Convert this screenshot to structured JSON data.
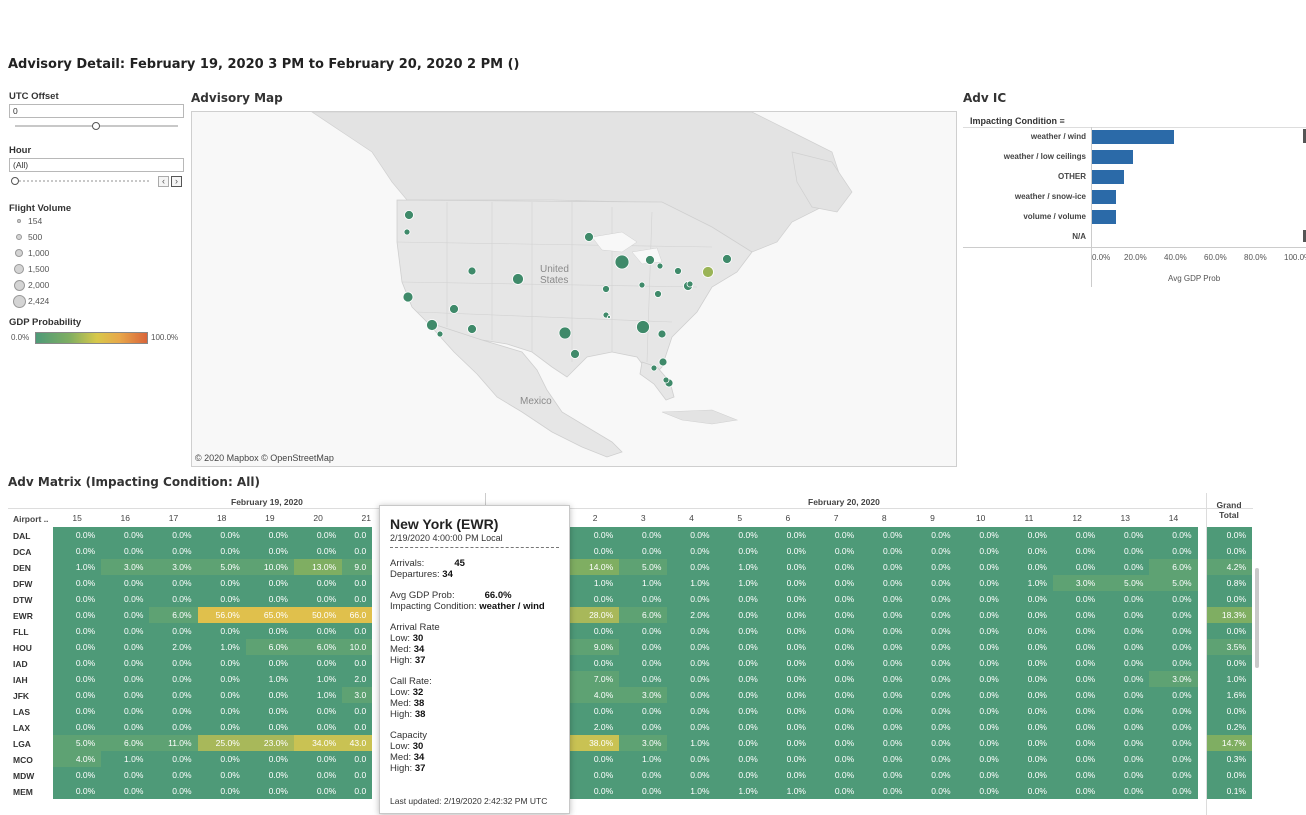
{
  "page_title": "Advisory Detail: February 19, 2020 3 PM to February 20, 2020 2 PM ()",
  "filters": {
    "utc_offset_label": "UTC Offset",
    "utc_offset_value": "0",
    "hour_label": "Hour",
    "hour_value": "(All)"
  },
  "flight_volume": {
    "label": "Flight Volume",
    "items": [
      "154",
      "500",
      "1,000",
      "1,500",
      "2,000",
      "2,424"
    ]
  },
  "gdp_probability": {
    "label": "GDP Probability",
    "min": "0.0%",
    "max": "100.0%"
  },
  "map": {
    "title": "Advisory Map",
    "label_country_1a": "United",
    "label_country_1b": "States",
    "label_country_2": "Mexico",
    "credit": "© 2020 Mapbox © OpenStreetMap"
  },
  "adv_ic": {
    "title": "Adv IC",
    "header": "Impacting Condition",
    "rows": [
      {
        "label": "weather / wind",
        "value": 0.39
      },
      {
        "label": "weather / low ceilings",
        "value": 0.195
      },
      {
        "label": "OTHER",
        "value": 0.15
      },
      {
        "label": "weather / snow-ice",
        "value": 0.115
      },
      {
        "label": "volume / volume",
        "value": 0.115
      },
      {
        "label": "N/A",
        "value": 0
      }
    ],
    "ticks": [
      "0.0%",
      "20.0%",
      "40.0%",
      "60.0%",
      "80.0%",
      "100.0%"
    ],
    "axis_title": "Avg GDP Prob",
    "bar_color": "#2b6aa8"
  },
  "matrix": {
    "title": "Adv Matrix (Impacting Condition: All)",
    "date1": "February 19, 2020",
    "date2": "February 20, 2020",
    "airport_header": "Airport ..",
    "grand_total_1": "Grand",
    "grand_total_2": "Total",
    "hours_left": [
      "15",
      "16",
      "17",
      "18",
      "19",
      "20",
      "21"
    ],
    "hours_right": [
      "2",
      "3",
      "4",
      "5",
      "6",
      "7",
      "8",
      "9",
      "10",
      "11",
      "12",
      "13",
      "14"
    ],
    "rows": [
      {
        "airport": "DAL",
        "left": [
          "0.0%",
          "0.0%",
          "0.0%",
          "0.0%",
          "0.0%",
          "0.0%",
          "0.0"
        ],
        "right": [
          "0.0%",
          "0.0%",
          "0.0%",
          "0.0%",
          "0.0%",
          "0.0%",
          "0.0%",
          "0.0%",
          "0.0%",
          "0.0%",
          "0.0%",
          "0.0%",
          "0.0%"
        ],
        "total": "0.0%"
      },
      {
        "airport": "DCA",
        "left": [
          "0.0%",
          "0.0%",
          "0.0%",
          "0.0%",
          "0.0%",
          "0.0%",
          "0.0"
        ],
        "right": [
          "0.0%",
          "0.0%",
          "0.0%",
          "0.0%",
          "0.0%",
          "0.0%",
          "0.0%",
          "0.0%",
          "0.0%",
          "0.0%",
          "0.0%",
          "0.0%",
          "0.0%"
        ],
        "total": "0.0%"
      },
      {
        "airport": "DEN",
        "left": [
          "1.0%",
          "3.0%",
          "3.0%",
          "5.0%",
          "10.0%",
          "13.0%",
          "9.0"
        ],
        "right": [
          "14.0%",
          "5.0%",
          "0.0%",
          "1.0%",
          "0.0%",
          "0.0%",
          "0.0%",
          "0.0%",
          "0.0%",
          "0.0%",
          "0.0%",
          "0.0%",
          "6.0%"
        ],
        "total": "4.2%"
      },
      {
        "airport": "DFW",
        "left": [
          "0.0%",
          "0.0%",
          "0.0%",
          "0.0%",
          "0.0%",
          "0.0%",
          "0.0"
        ],
        "right": [
          "1.0%",
          "1.0%",
          "1.0%",
          "1.0%",
          "0.0%",
          "0.0%",
          "0.0%",
          "0.0%",
          "0.0%",
          "1.0%",
          "3.0%",
          "5.0%",
          "5.0%"
        ],
        "total": "0.8%"
      },
      {
        "airport": "DTW",
        "left": [
          "0.0%",
          "0.0%",
          "0.0%",
          "0.0%",
          "0.0%",
          "0.0%",
          "0.0"
        ],
        "right": [
          "0.0%",
          "0.0%",
          "0.0%",
          "0.0%",
          "0.0%",
          "0.0%",
          "0.0%",
          "0.0%",
          "0.0%",
          "0.0%",
          "0.0%",
          "0.0%",
          "0.0%"
        ],
        "total": "0.0%"
      },
      {
        "airport": "EWR",
        "left": [
          "0.0%",
          "0.0%",
          "6.0%",
          "56.0%",
          "65.0%",
          "50.0%",
          "66.0"
        ],
        "right": [
          "28.0%",
          "6.0%",
          "2.0%",
          "0.0%",
          "0.0%",
          "0.0%",
          "0.0%",
          "0.0%",
          "0.0%",
          "0.0%",
          "0.0%",
          "0.0%",
          "0.0%"
        ],
        "total": "18.3%"
      },
      {
        "airport": "FLL",
        "left": [
          "0.0%",
          "0.0%",
          "0.0%",
          "0.0%",
          "0.0%",
          "0.0%",
          "0.0"
        ],
        "right": [
          "0.0%",
          "0.0%",
          "0.0%",
          "0.0%",
          "0.0%",
          "0.0%",
          "0.0%",
          "0.0%",
          "0.0%",
          "0.0%",
          "0.0%",
          "0.0%",
          "0.0%"
        ],
        "total": "0.0%"
      },
      {
        "airport": "HOU",
        "left": [
          "0.0%",
          "0.0%",
          "2.0%",
          "1.0%",
          "6.0%",
          "6.0%",
          "10.0"
        ],
        "right": [
          "9.0%",
          "0.0%",
          "0.0%",
          "0.0%",
          "0.0%",
          "0.0%",
          "0.0%",
          "0.0%",
          "0.0%",
          "0.0%",
          "0.0%",
          "0.0%",
          "0.0%"
        ],
        "total": "3.5%"
      },
      {
        "airport": "IAD",
        "left": [
          "0.0%",
          "0.0%",
          "0.0%",
          "0.0%",
          "0.0%",
          "0.0%",
          "0.0"
        ],
        "right": [
          "0.0%",
          "0.0%",
          "0.0%",
          "0.0%",
          "0.0%",
          "0.0%",
          "0.0%",
          "0.0%",
          "0.0%",
          "0.0%",
          "0.0%",
          "0.0%",
          "0.0%"
        ],
        "total": "0.0%"
      },
      {
        "airport": "IAH",
        "left": [
          "0.0%",
          "0.0%",
          "0.0%",
          "0.0%",
          "1.0%",
          "1.0%",
          "2.0"
        ],
        "right": [
          "7.0%",
          "0.0%",
          "0.0%",
          "0.0%",
          "0.0%",
          "0.0%",
          "0.0%",
          "0.0%",
          "0.0%",
          "0.0%",
          "0.0%",
          "0.0%",
          "3.0%"
        ],
        "total": "1.0%"
      },
      {
        "airport": "JFK",
        "left": [
          "0.0%",
          "0.0%",
          "0.0%",
          "0.0%",
          "0.0%",
          "1.0%",
          "3.0"
        ],
        "right": [
          "4.0%",
          "3.0%",
          "0.0%",
          "0.0%",
          "0.0%",
          "0.0%",
          "0.0%",
          "0.0%",
          "0.0%",
          "0.0%",
          "0.0%",
          "0.0%",
          "0.0%"
        ],
        "total": "1.6%"
      },
      {
        "airport": "LAS",
        "left": [
          "0.0%",
          "0.0%",
          "0.0%",
          "0.0%",
          "0.0%",
          "0.0%",
          "0.0"
        ],
        "right": [
          "0.0%",
          "0.0%",
          "0.0%",
          "0.0%",
          "0.0%",
          "0.0%",
          "0.0%",
          "0.0%",
          "0.0%",
          "0.0%",
          "0.0%",
          "0.0%",
          "0.0%"
        ],
        "total": "0.0%"
      },
      {
        "airport": "LAX",
        "left": [
          "0.0%",
          "0.0%",
          "0.0%",
          "0.0%",
          "0.0%",
          "0.0%",
          "0.0"
        ],
        "right": [
          "2.0%",
          "0.0%",
          "0.0%",
          "0.0%",
          "0.0%",
          "0.0%",
          "0.0%",
          "0.0%",
          "0.0%",
          "0.0%",
          "0.0%",
          "0.0%",
          "0.0%"
        ],
        "total": "0.2%"
      },
      {
        "airport": "LGA",
        "left": [
          "5.0%",
          "6.0%",
          "11.0%",
          "25.0%",
          "23.0%",
          "34.0%",
          "43.0"
        ],
        "right": [
          "38.0%",
          "3.0%",
          "1.0%",
          "0.0%",
          "0.0%",
          "0.0%",
          "0.0%",
          "0.0%",
          "0.0%",
          "0.0%",
          "0.0%",
          "0.0%",
          "0.0%"
        ],
        "total": "14.7%"
      },
      {
        "airport": "MCO",
        "left": [
          "4.0%",
          "1.0%",
          "0.0%",
          "0.0%",
          "0.0%",
          "0.0%",
          "0.0"
        ],
        "right": [
          "0.0%",
          "1.0%",
          "0.0%",
          "0.0%",
          "0.0%",
          "0.0%",
          "0.0%",
          "0.0%",
          "0.0%",
          "0.0%",
          "0.0%",
          "0.0%",
          "0.0%"
        ],
        "total": "0.3%"
      },
      {
        "airport": "MDW",
        "left": [
          "0.0%",
          "0.0%",
          "0.0%",
          "0.0%",
          "0.0%",
          "0.0%",
          "0.0"
        ],
        "right": [
          "0.0%",
          "0.0%",
          "0.0%",
          "0.0%",
          "0.0%",
          "0.0%",
          "0.0%",
          "0.0%",
          "0.0%",
          "0.0%",
          "0.0%",
          "0.0%",
          "0.0%"
        ],
        "total": "0.0%"
      },
      {
        "airport": "MEM",
        "left": [
          "0.0%",
          "0.0%",
          "0.0%",
          "0.0%",
          "0.0%",
          "0.0%",
          "0.0"
        ],
        "right": [
          "0.0%",
          "0.0%",
          "1.0%",
          "1.0%",
          "1.0%",
          "0.0%",
          "0.0%",
          "0.0%",
          "0.0%",
          "0.0%",
          "0.0%",
          "0.0%",
          "0.0%"
        ],
        "total": "0.1%"
      }
    ]
  },
  "tooltip": {
    "title": "New York (EWR)",
    "datetime": "2/19/2020 4:00:00 PM Local",
    "arrivals_label": "Arrivals:",
    "arrivals_value": "45",
    "departures_label": "Departures:",
    "departures_value": "34",
    "gdp_label": "Avg GDP Prob:",
    "gdp_value": "66.0%",
    "ic_label": "Impacting Condition:",
    "ic_value": "weather / wind",
    "arrival_rate_label": "Arrival Rate",
    "call_rate_label": "Call Rate:",
    "capacity_label": "Capacity",
    "low_label": "Low:",
    "med_label": "Med:",
    "high_label": "High:",
    "arrival_rate": {
      "low": "30",
      "med": "34",
      "high": "37"
    },
    "call_rate": {
      "low": "32",
      "med": "38",
      "high": "38"
    },
    "capacity": {
      "low": "30",
      "med": "34",
      "high": "37"
    },
    "footer": "Last updated: 2/19/2020 2:42:32 PM UTC"
  },
  "colors": {
    "cell_base": "#4e9a78",
    "cell_light": "#7fae62",
    "cell_mid": "#c9c253",
    "cell_high": "#e0c04c",
    "map_land": "#e6e6e6",
    "map_water": "#f7f7f7",
    "marker": "#3f8a6a"
  }
}
